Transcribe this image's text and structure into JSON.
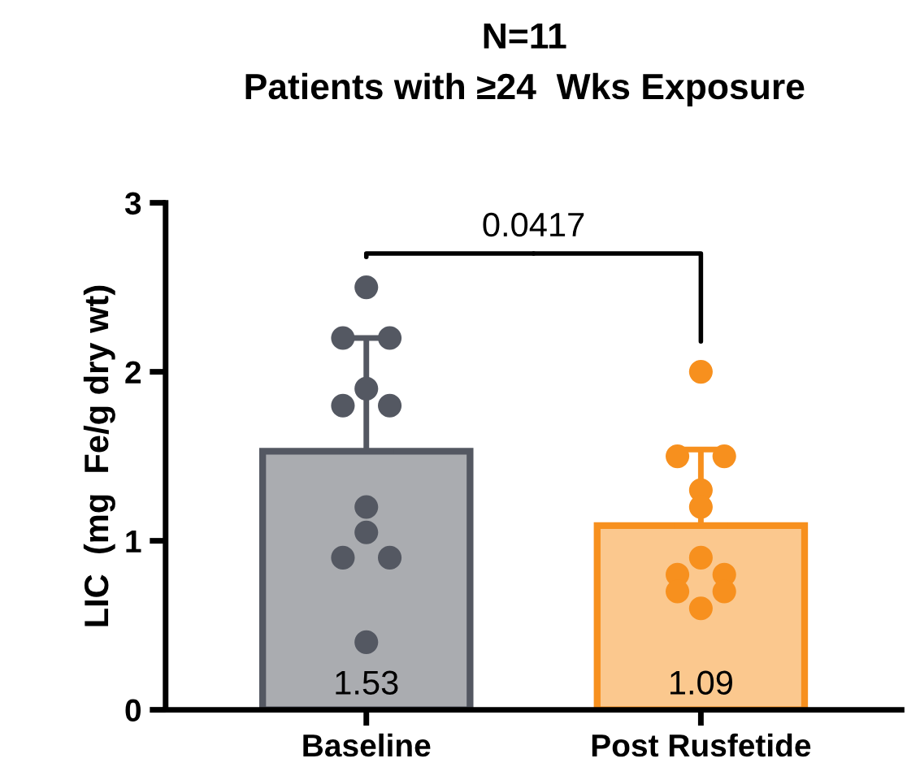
{
  "chart_data": {
    "type": "bar",
    "title": "N=11",
    "subtitle": "Patients with ≥24  Wks Exposure",
    "ylabel": "LIC  (mg  Fe/g dry wt)",
    "categories": [
      "Baseline",
      "Post Rusfetide"
    ],
    "series": [
      {
        "colors": [
          "#545862",
          "#f7901e"
        ],
        "values": [
          1.53,
          1.09
        ],
        "errors": [
          [
            1.53,
            2.2
          ],
          [
            1.09,
            1.54
          ]
        ],
        "value_labels": [
          "1.53",
          "1.09"
        ]
      },
      {
        "type": "scatter",
        "x": [
          "Baseline",
          "Baseline",
          "Baseline",
          "Baseline",
          "Baseline",
          "Baseline",
          "Baseline",
          "Baseline",
          "Baseline",
          "Baseline",
          "Baseline",
          "Post Rusfetide",
          "Post Rusfetide",
          "Post Rusfetide",
          "Post Rusfetide",
          "Post Rusfetide",
          "Post Rusfetide",
          "Post Rusfetide",
          "Post Rusfetide",
          "Post Rusfetide",
          "Post Rusfetide",
          "Post Rusfetide"
        ],
        "values": [
          2.5,
          2.2,
          2.2,
          1.9,
          1.8,
          1.8,
          1.2,
          1.05,
          0.9,
          0.9,
          0.4,
          2.0,
          1.5,
          1.5,
          1.3,
          1.2,
          0.9,
          0.8,
          0.8,
          0.7,
          0.7,
          0.6
        ],
        "colors": [
          "#545862",
          "#545862",
          "#545862",
          "#545862",
          "#545862",
          "#545862",
          "#545862",
          "#545862",
          "#545862",
          "#545862",
          "#545862",
          "#f7901e",
          "#f7901e",
          "#f7901e",
          "#f7901e",
          "#f7901e",
          "#f7901e",
          "#f7901e",
          "#f7901e",
          "#f7901e",
          "#f7901e",
          "#f7901e"
        ]
      }
    ],
    "annotations": [
      "0.0417"
    ],
    "ylim": [
      0,
      3
    ],
    "yticks": [
      0,
      1,
      2,
      3
    ],
    "grid": false,
    "legend": false,
    "marker": "circle"
  }
}
